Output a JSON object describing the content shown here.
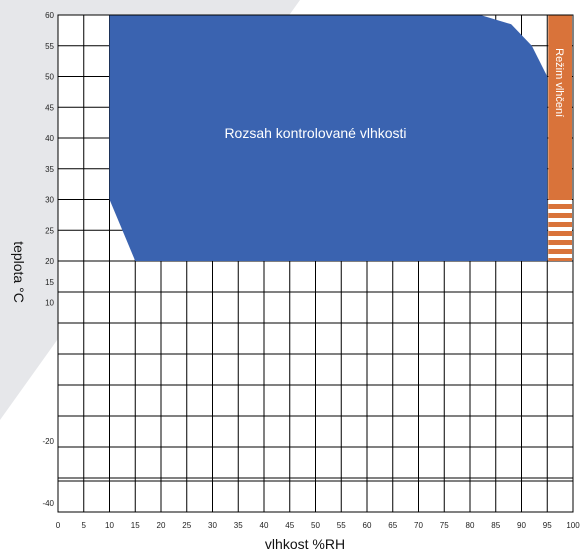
{
  "chart_data": {
    "type": "area",
    "xlabel": "vlhkost %RH",
    "ylabel": "teplota  °C",
    "x_ticks": [
      "0",
      "5",
      "10",
      "15",
      "20",
      "25",
      "30",
      "35",
      "40",
      "45",
      "50",
      "55",
      "60",
      "65",
      "70",
      "75",
      "80",
      "85",
      "90",
      "95",
      "100"
    ],
    "y_ticks": [
      {
        "label": "60",
        "v": 60
      },
      {
        "label": "55",
        "v": 55
      },
      {
        "label": "50",
        "v": 50
      },
      {
        "label": "45",
        "v": 45
      },
      {
        "label": "40",
        "v": 40
      },
      {
        "label": "35",
        "v": 35
      },
      {
        "label": "30",
        "v": 30
      },
      {
        "label": "25",
        "v": 25
      },
      {
        "label": "20",
        "v": 20
      },
      {
        "label": "15",
        "v": 15
      },
      {
        "label": "10",
        "v": 10
      },
      {
        "label": "-20",
        "v": -20
      },
      {
        "label": "-40",
        "v": -40
      }
    ],
    "xlim": [
      0,
      100
    ],
    "grid": true,
    "regions": [
      {
        "label": "Rozsah kontrolované vlhkosti",
        "color": "#3a63b0",
        "polygon": [
          [
            10,
            30
          ],
          [
            10,
            60
          ],
          [
            82,
            60
          ],
          [
            88,
            58.5
          ],
          [
            92,
            55
          ],
          [
            95,
            50
          ],
          [
            95,
            20
          ],
          [
            15,
            20
          ]
        ]
      },
      {
        "label": "Režim vlhčení",
        "color": "#d9733a",
        "x_range": [
          95,
          100
        ],
        "y_range": [
          20,
          60
        ]
      }
    ]
  }
}
